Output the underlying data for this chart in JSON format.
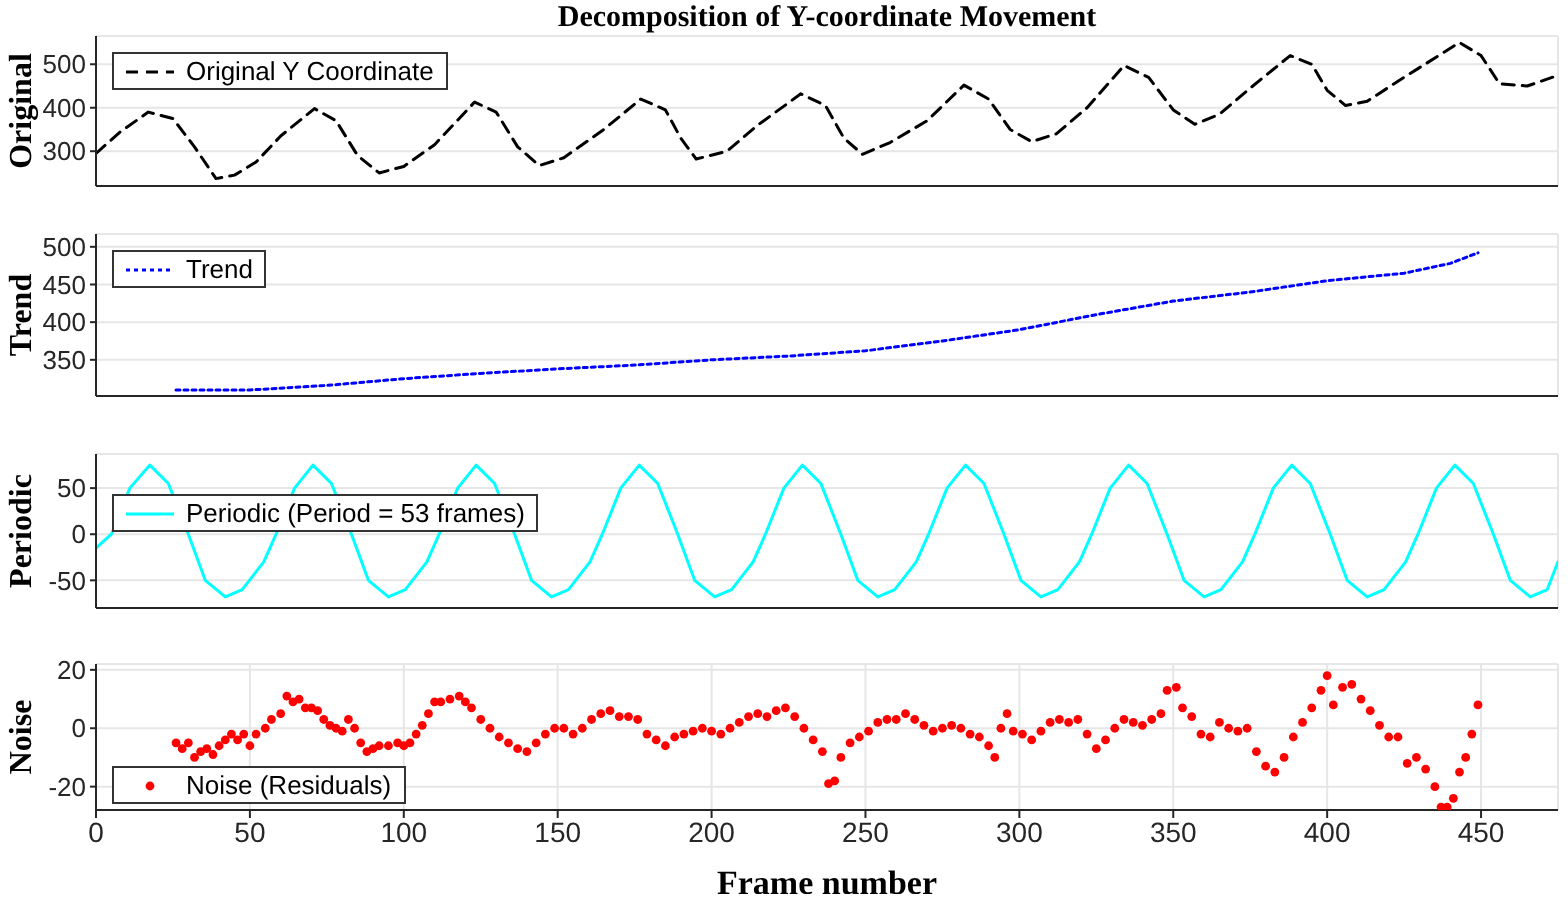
{
  "chart_data": [
    {
      "type": "line",
      "title": "Decomposition of Y-coordinate Movement",
      "ylabel": "Original",
      "xlim": [
        0,
        475
      ],
      "xticks": [
        0,
        50,
        100,
        150,
        200,
        250,
        300,
        350,
        400,
        450
      ],
      "ylim": [
        220,
        565
      ],
      "yticks": [
        300,
        400,
        500
      ],
      "grid": true,
      "legend": "top left",
      "line_style": "dashed",
      "tick_labels": "y",
      "series": [
        {
          "name": "Original Y Coordinate",
          "color": "#000000",
          "x": [
            0,
            8,
            17,
            25,
            32,
            39,
            45,
            52,
            60,
            71,
            78,
            85,
            92,
            100,
            110,
            123,
            130,
            137,
            144,
            152,
            165,
            177,
            185,
            190,
            195,
            205,
            215,
            229,
            237,
            243,
            249,
            258,
            270,
            282,
            290,
            297,
            304,
            312,
            322,
            334,
            342,
            350,
            357,
            365,
            375,
            388,
            395,
            400,
            406,
            413,
            425,
            443,
            450,
            456,
            465,
            474
          ],
          "values": [
            295,
            345,
            390,
            375,
            310,
            237,
            245,
            275,
            335,
            398,
            370,
            290,
            250,
            265,
            315,
            413,
            390,
            310,
            267,
            285,
            350,
            420,
            395,
            330,
            282,
            300,
            360,
            432,
            405,
            330,
            293,
            320,
            370,
            452,
            420,
            350,
            322,
            340,
            400,
            497,
            470,
            395,
            362,
            385,
            445,
            520,
            500,
            440,
            405,
            415,
            470,
            550,
            520,
            455,
            450,
            472
          ]
        }
      ]
    },
    {
      "type": "line",
      "ylabel": "Trend",
      "xlim": [
        0,
        475
      ],
      "xticks": [
        0,
        50,
        100,
        150,
        200,
        250,
        300,
        350,
        400,
        450
      ],
      "ylim": [
        302,
        517
      ],
      "yticks": [
        350,
        400,
        450,
        500
      ],
      "grid": true,
      "legend": "top left",
      "line_style": "dotted",
      "tick_labels": "y",
      "series": [
        {
          "name": "Trend",
          "color": "#0000ff",
          "x": [
            26,
            50,
            75,
            100,
            125,
            150,
            175,
            200,
            225,
            250,
            275,
            300,
            325,
            350,
            375,
            400,
            425,
            440,
            449
          ],
          "values": [
            310,
            310,
            316,
            325,
            332,
            338,
            343,
            350,
            355,
            362,
            375,
            390,
            410,
            428,
            440,
            455,
            465,
            478,
            492
          ]
        }
      ]
    },
    {
      "type": "line",
      "ylabel": "Periodic",
      "xlim": [
        0,
        475
      ],
      "xticks": [
        0,
        50,
        100,
        150,
        200,
        250,
        300,
        350,
        400,
        450
      ],
      "ylim": [
        -80,
        87
      ],
      "yticks": [
        -50,
        0,
        50
      ],
      "grid": true,
      "legend": "top left",
      "line_style": "solid",
      "tick_labels": "y",
      "series": [
        {
          "name": "Periodic (Period = 53 frames)",
          "color": "#00ffff",
          "x": [
            0,
            5,
            11,
            17.5,
            23.5,
            30,
            35.5,
            42,
            47.5,
            54.5,
            58.5,
            64.5,
            70.5,
            76.5,
            83,
            88.5,
            95,
            100.5,
            107.5,
            111.5,
            117.5,
            123.5,
            129.5,
            136,
            141.5,
            148,
            153.5,
            160.5,
            164.5,
            170.5,
            176.5,
            182.5,
            189,
            194.5,
            201,
            206.5,
            213.5,
            217.5,
            223.5,
            229.5,
            235.5,
            242,
            247.5,
            254,
            259.5,
            266.5,
            270.5,
            276.5,
            282.5,
            288.5,
            295,
            300.5,
            307,
            312.5,
            319.5,
            323.5,
            329.5,
            335.5,
            341.5,
            348,
            353.5,
            360,
            365.5,
            372.5,
            376.5,
            382.5,
            388.5,
            394.5,
            401,
            406.5,
            413,
            418.5,
            425.5,
            429.5,
            435.5,
            441.5,
            447.5,
            454,
            459.5,
            466,
            471.5,
            475
          ],
          "values": [
            -15,
            0,
            50,
            75,
            55,
            0,
            -50,
            -68,
            -60,
            -30,
            0,
            50,
            75,
            55,
            0,
            -50,
            -68,
            -60,
            -30,
            0,
            50,
            75,
            55,
            0,
            -50,
            -68,
            -60,
            -30,
            0,
            50,
            75,
            55,
            0,
            -50,
            -68,
            -60,
            -30,
            0,
            50,
            75,
            55,
            0,
            -50,
            -68,
            -60,
            -30,
            0,
            50,
            75,
            55,
            0,
            -50,
            -68,
            -60,
            -30,
            0,
            50,
            75,
            55,
            0,
            -50,
            -68,
            -60,
            -30,
            0,
            50,
            75,
            55,
            0,
            -50,
            -68,
            -60,
            -30,
            0,
            50,
            75,
            55,
            0,
            -50,
            -68,
            -60,
            -30
          ]
        }
      ]
    },
    {
      "type": "scatter",
      "ylabel": "Noise",
      "xlabel": "Frame number",
      "xlim": [
        0,
        475
      ],
      "xticks": [
        0,
        50,
        100,
        150,
        200,
        250,
        300,
        350,
        400,
        450
      ],
      "ylim": [
        -28,
        22
      ],
      "yticks": [
        -20,
        0,
        20
      ],
      "grid": true,
      "legend": "bottom left",
      "marker": "circle",
      "series": [
        {
          "name": "Noise (Residuals)",
          "color": "#ff0000",
          "x": [
            26,
            28,
            30,
            32,
            34,
            36,
            38,
            40,
            42,
            44,
            46,
            48,
            50,
            52,
            55,
            57,
            60,
            62,
            64,
            66,
            68,
            70,
            72,
            74,
            76,
            78,
            80,
            82,
            84,
            86,
            88,
            90,
            92,
            95,
            98,
            100,
            102,
            104,
            106,
            108,
            110,
            112,
            115,
            118,
            120,
            122,
            125,
            128,
            131,
            134,
            137,
            140,
            143,
            146,
            149,
            152,
            155,
            158,
            161,
            164,
            167,
            170,
            173,
            176,
            179,
            182,
            185,
            188,
            191,
            194,
            197,
            200,
            203,
            206,
            209,
            212,
            215,
            218,
            221,
            224,
            227,
            230,
            233,
            236,
            238,
            240,
            242,
            245,
            248,
            251,
            254,
            257,
            260,
            263,
            266,
            269,
            272,
            275,
            278,
            281,
            284,
            287,
            290,
            292,
            294,
            296,
            298,
            301,
            304,
            307,
            310,
            313,
            316,
            319,
            322,
            325,
            328,
            331,
            334,
            337,
            340,
            343,
            346,
            348,
            351,
            353,
            356,
            359,
            362,
            365,
            368,
            371,
            374,
            377,
            380,
            383,
            386,
            389,
            392,
            395,
            398,
            400,
            402,
            405,
            408,
            411,
            414,
            417,
            420,
            423,
            426,
            429,
            432,
            435,
            437,
            439,
            441,
            443,
            445,
            447,
            449
          ],
          "values": [
            -5,
            -7,
            -5,
            -10,
            -8,
            -7,
            -9,
            -6,
            -4,
            -2,
            -4,
            -2,
            -6,
            -2,
            0,
            3,
            5,
            11,
            9,
            10,
            7,
            7,
            6,
            3,
            1,
            0,
            -1,
            3,
            0,
            -5,
            -8,
            -7,
            -6,
            -6,
            -5,
            -6,
            -5,
            -2,
            1,
            5,
            9,
            9,
            10,
            11,
            9,
            7,
            3,
            0,
            -3,
            -5,
            -7,
            -8,
            -5,
            -2,
            0,
            0,
            -2,
            0,
            3,
            5,
            6,
            4,
            4,
            3,
            -2,
            -4,
            -6,
            -3,
            -2,
            -1,
            0,
            -1,
            -2,
            0,
            2,
            4,
            5,
            4,
            6,
            7,
            4,
            0,
            -4,
            -8,
            -19,
            -18,
            -10,
            -5,
            -3,
            -1,
            2,
            3,
            3,
            5,
            3,
            1,
            -1,
            0,
            1,
            0,
            -2,
            -3,
            -6,
            -10,
            0,
            5,
            -1,
            -2,
            -4,
            -1,
            2,
            3,
            2,
            3,
            -2,
            -7,
            -4,
            0,
            3,
            2,
            1,
            3,
            5,
            13,
            14,
            7,
            4,
            -2,
            -3,
            2,
            0,
            -1,
            0,
            -8,
            -13,
            -15,
            -10,
            -3,
            2,
            7,
            13,
            18,
            8,
            14,
            15,
            10,
            6,
            1,
            -3,
            -3,
            -12,
            -10,
            -14,
            -20,
            -27,
            -27,
            -24,
            -15,
            -10,
            -2,
            8
          ]
        }
      ]
    }
  ]
}
